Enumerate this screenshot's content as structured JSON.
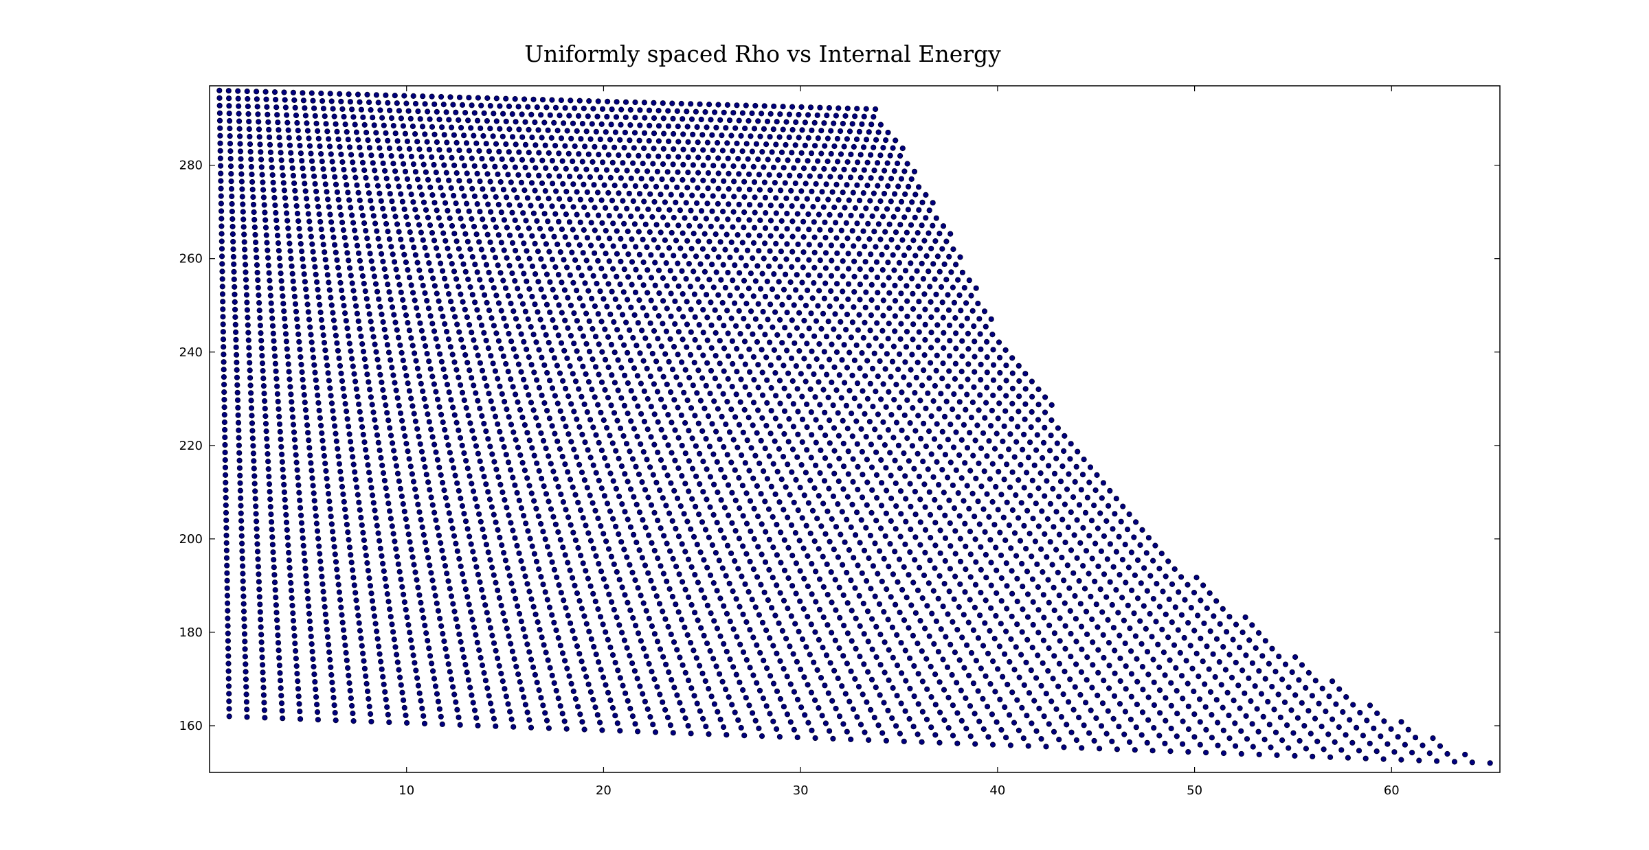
{
  "chart_data": {
    "type": "scatter",
    "title": "Uniformly spaced Rho vs Internal Energy",
    "xlabel": "",
    "ylabel": "",
    "xlim": [
      0,
      65.5
    ],
    "ylim": [
      150,
      297
    ],
    "xticks": [
      10,
      20,
      30,
      40,
      50,
      60
    ],
    "yticks": [
      160,
      180,
      200,
      220,
      240,
      260,
      280
    ],
    "grid": false,
    "legend": "none",
    "marker_color": "#00007f",
    "series": [
      {
        "grid_columns": 72,
        "grid_rows": 84,
        "boundary": {
          "top_left": [
            0.5,
            296
          ],
          "top_right": [
            33.8,
            292
          ],
          "bottom_left": [
            1.0,
            162
          ],
          "bottom_right": [
            65.0,
            152
          ],
          "right_edge_curve": [
            [
              33.8,
              292
            ],
            [
              35,
              285
            ],
            [
              37,
              270
            ],
            [
              40,
              245
            ],
            [
              45,
              215
            ],
            [
              50,
              192
            ],
            [
              55,
              175
            ],
            [
              60,
              162
            ],
            [
              63,
              156
            ],
            [
              65,
              152
            ]
          ]
        }
      }
    ]
  }
}
